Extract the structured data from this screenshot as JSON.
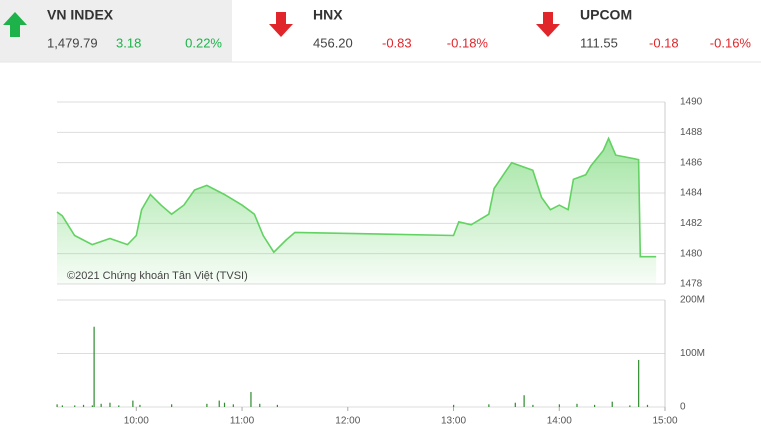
{
  "header": {
    "tickers": [
      {
        "name": "VN INDEX",
        "value": "1,479.79",
        "change": "3.18",
        "percent": "0.22%",
        "direction": "up",
        "color": "#1db34a",
        "highlight": true
      },
      {
        "name": "HNX",
        "value": "456.20",
        "change": "-0.83",
        "percent": "-0.18%",
        "direction": "down",
        "color": "#e0262b",
        "highlight": false
      },
      {
        "name": "UPCOM",
        "value": "111.55",
        "change": "-0.18",
        "percent": "-0.16%",
        "direction": "down",
        "color": "#e0262b",
        "highlight": false
      }
    ]
  },
  "chart_data": [
    {
      "type": "line",
      "annotation": "©2021 Chứng khoán Tân Việt (TVSI)",
      "x": [
        555,
        558,
        565,
        575,
        585,
        595,
        600,
        603,
        608,
        614,
        620,
        627,
        633,
        640,
        650,
        660,
        667,
        672,
        678,
        685,
        690,
        780,
        783,
        790,
        800,
        803,
        810,
        813,
        825,
        830,
        835,
        840,
        845,
        848,
        855,
        858,
        865,
        868,
        872,
        885,
        886,
        895
      ],
      "values": [
        1482.75,
        1482.5,
        1481.2,
        1480.6,
        1481.0,
        1480.6,
        1481.2,
        1482.9,
        1483.9,
        1483.2,
        1482.6,
        1483.2,
        1484.2,
        1484.5,
        1483.9,
        1483.2,
        1482.6,
        1481.2,
        1480.1,
        1480.9,
        1481.4,
        1481.2,
        1482.1,
        1481.9,
        1482.6,
        1484.3,
        1485.5,
        1486.0,
        1485.5,
        1483.7,
        1482.9,
        1483.2,
        1482.9,
        1484.9,
        1485.2,
        1485.8,
        1486.8,
        1487.6,
        1486.5,
        1486.2,
        1479.8,
        1479.8
      ],
      "color": "#62d262",
      "xlim": [
        555,
        900
      ],
      "ylim": [
        1478,
        1490
      ],
      "yticks": [
        1478,
        1480,
        1482,
        1484,
        1486,
        1488,
        1490
      ],
      "grid": true
    },
    {
      "type": "bar",
      "x": [
        555,
        558,
        565,
        570,
        575,
        576,
        580,
        585,
        590,
        598,
        602,
        620,
        640,
        647,
        650,
        655,
        665,
        670,
        680,
        780,
        800,
        815,
        820,
        825,
        840,
        850,
        860,
        870,
        880,
        885,
        890
      ],
      "values": [
        5,
        3,
        3,
        4,
        3,
        150,
        6,
        8,
        3,
        12,
        4,
        5,
        6,
        12,
        8,
        5,
        28,
        6,
        4,
        4,
        5,
        8,
        22,
        4,
        5,
        6,
        4,
        10,
        3,
        88,
        4
      ],
      "color": "#2e8b2e",
      "xlim": [
        555,
        900
      ],
      "ylim": [
        0,
        200
      ],
      "yticks": [
        0,
        {
          "value": 100,
          "label": "100M"
        },
        {
          "value": 200,
          "label": "200M"
        }
      ],
      "xticks": [
        {
          "value": 600,
          "label": "10:00"
        },
        {
          "value": 660,
          "label": "11:00"
        },
        {
          "value": 720,
          "label": "12:00"
        },
        {
          "value": 780,
          "label": "13:00"
        },
        {
          "value": 840,
          "label": "14:00"
        },
        {
          "value": 900,
          "label": "15:00"
        }
      ],
      "grid": true
    }
  ]
}
